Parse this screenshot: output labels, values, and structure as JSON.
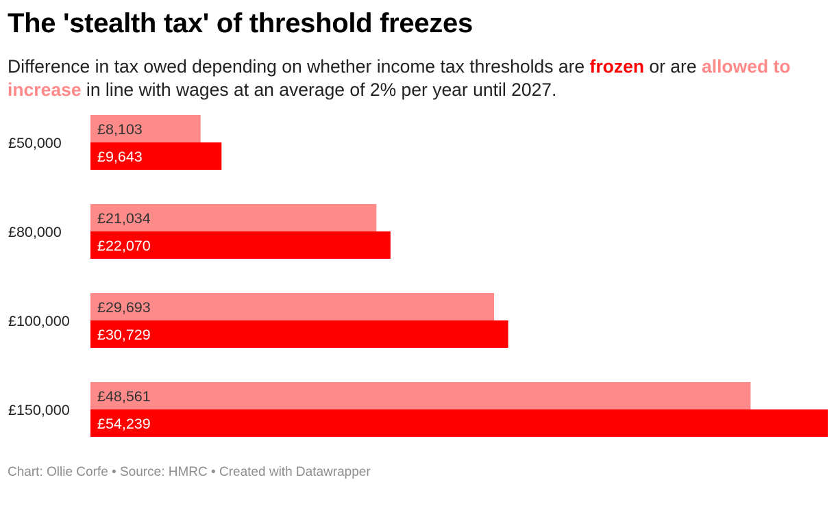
{
  "title": "The 'stealth tax' of threshold freezes",
  "subtitle": {
    "part1": "Difference in tax owed depending on whether income tax thresholds are ",
    "frozen": "frozen",
    "part2": " or are ",
    "allowed": "allowed to increase",
    "part3": " in line with wages at an average of 2% per year until 2027."
  },
  "colors": {
    "frozen": "#ff0000",
    "allowed": "#ff8a8a",
    "frozen_label_text": "#ffffff",
    "allowed_label_text": "#333333"
  },
  "chart_data": {
    "type": "bar",
    "orientation": "horizontal",
    "categories": [
      "£50,000",
      "£80,000",
      "£100,000",
      "£150,000"
    ],
    "series": [
      {
        "name": "allowed to increase",
        "values": [
          8103,
          21034,
          29693,
          48561
        ],
        "labels": [
          "£8,103",
          "£21,034",
          "£29,693",
          "£48,561"
        ]
      },
      {
        "name": "frozen",
        "values": [
          9643,
          22070,
          30729,
          54239
        ],
        "labels": [
          "£9,643",
          "£22,070",
          "£30,729",
          "£54,239"
        ]
      }
    ],
    "xlim": [
      0,
      54239
    ],
    "grid": false,
    "legend": "inline in subtitle"
  },
  "footer": {
    "chart_by": "Chart: Ollie Corfe",
    "sep1": " • ",
    "source": "Source: HMRC",
    "sep2": " • ",
    "created": "Created with Datawrapper"
  }
}
